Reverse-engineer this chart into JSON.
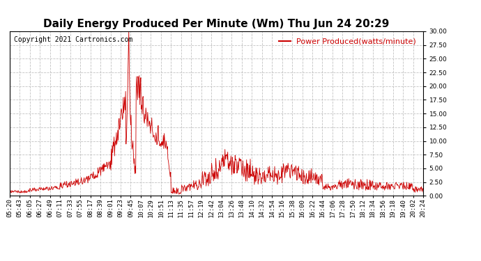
{
  "title": "Daily Energy Produced Per Minute (Wm) Thu Jun 24 20:29",
  "copyright": "Copyright 2021 Cartronics.com",
  "legend_label": "Power Produced(watts/minute)",
  "line_color": "#cc0000",
  "legend_color": "#cc0000",
  "copyright_color": "#000000",
  "background_color": "#ffffff",
  "grid_color": "#bbbbbb",
  "ylim": [
    0,
    30
  ],
  "yticks": [
    0.0,
    2.5,
    5.0,
    7.5,
    10.0,
    12.5,
    15.0,
    17.5,
    20.0,
    22.5,
    25.0,
    27.5,
    30.0
  ],
  "x_labels": [
    "05:20",
    "05:43",
    "06:05",
    "06:27",
    "06:49",
    "07:11",
    "07:33",
    "07:55",
    "08:17",
    "08:39",
    "09:01",
    "09:23",
    "09:45",
    "10:07",
    "10:29",
    "10:51",
    "11:13",
    "11:35",
    "11:57",
    "12:19",
    "12:42",
    "13:04",
    "13:26",
    "13:48",
    "14:10",
    "14:32",
    "14:54",
    "15:16",
    "15:38",
    "16:00",
    "16:22",
    "16:44",
    "17:06",
    "17:28",
    "17:50",
    "18:12",
    "18:34",
    "18:56",
    "19:18",
    "19:40",
    "20:02",
    "20:24"
  ],
  "title_fontsize": 11,
  "copyright_fontsize": 7,
  "legend_fontsize": 8,
  "tick_fontsize": 6.5
}
